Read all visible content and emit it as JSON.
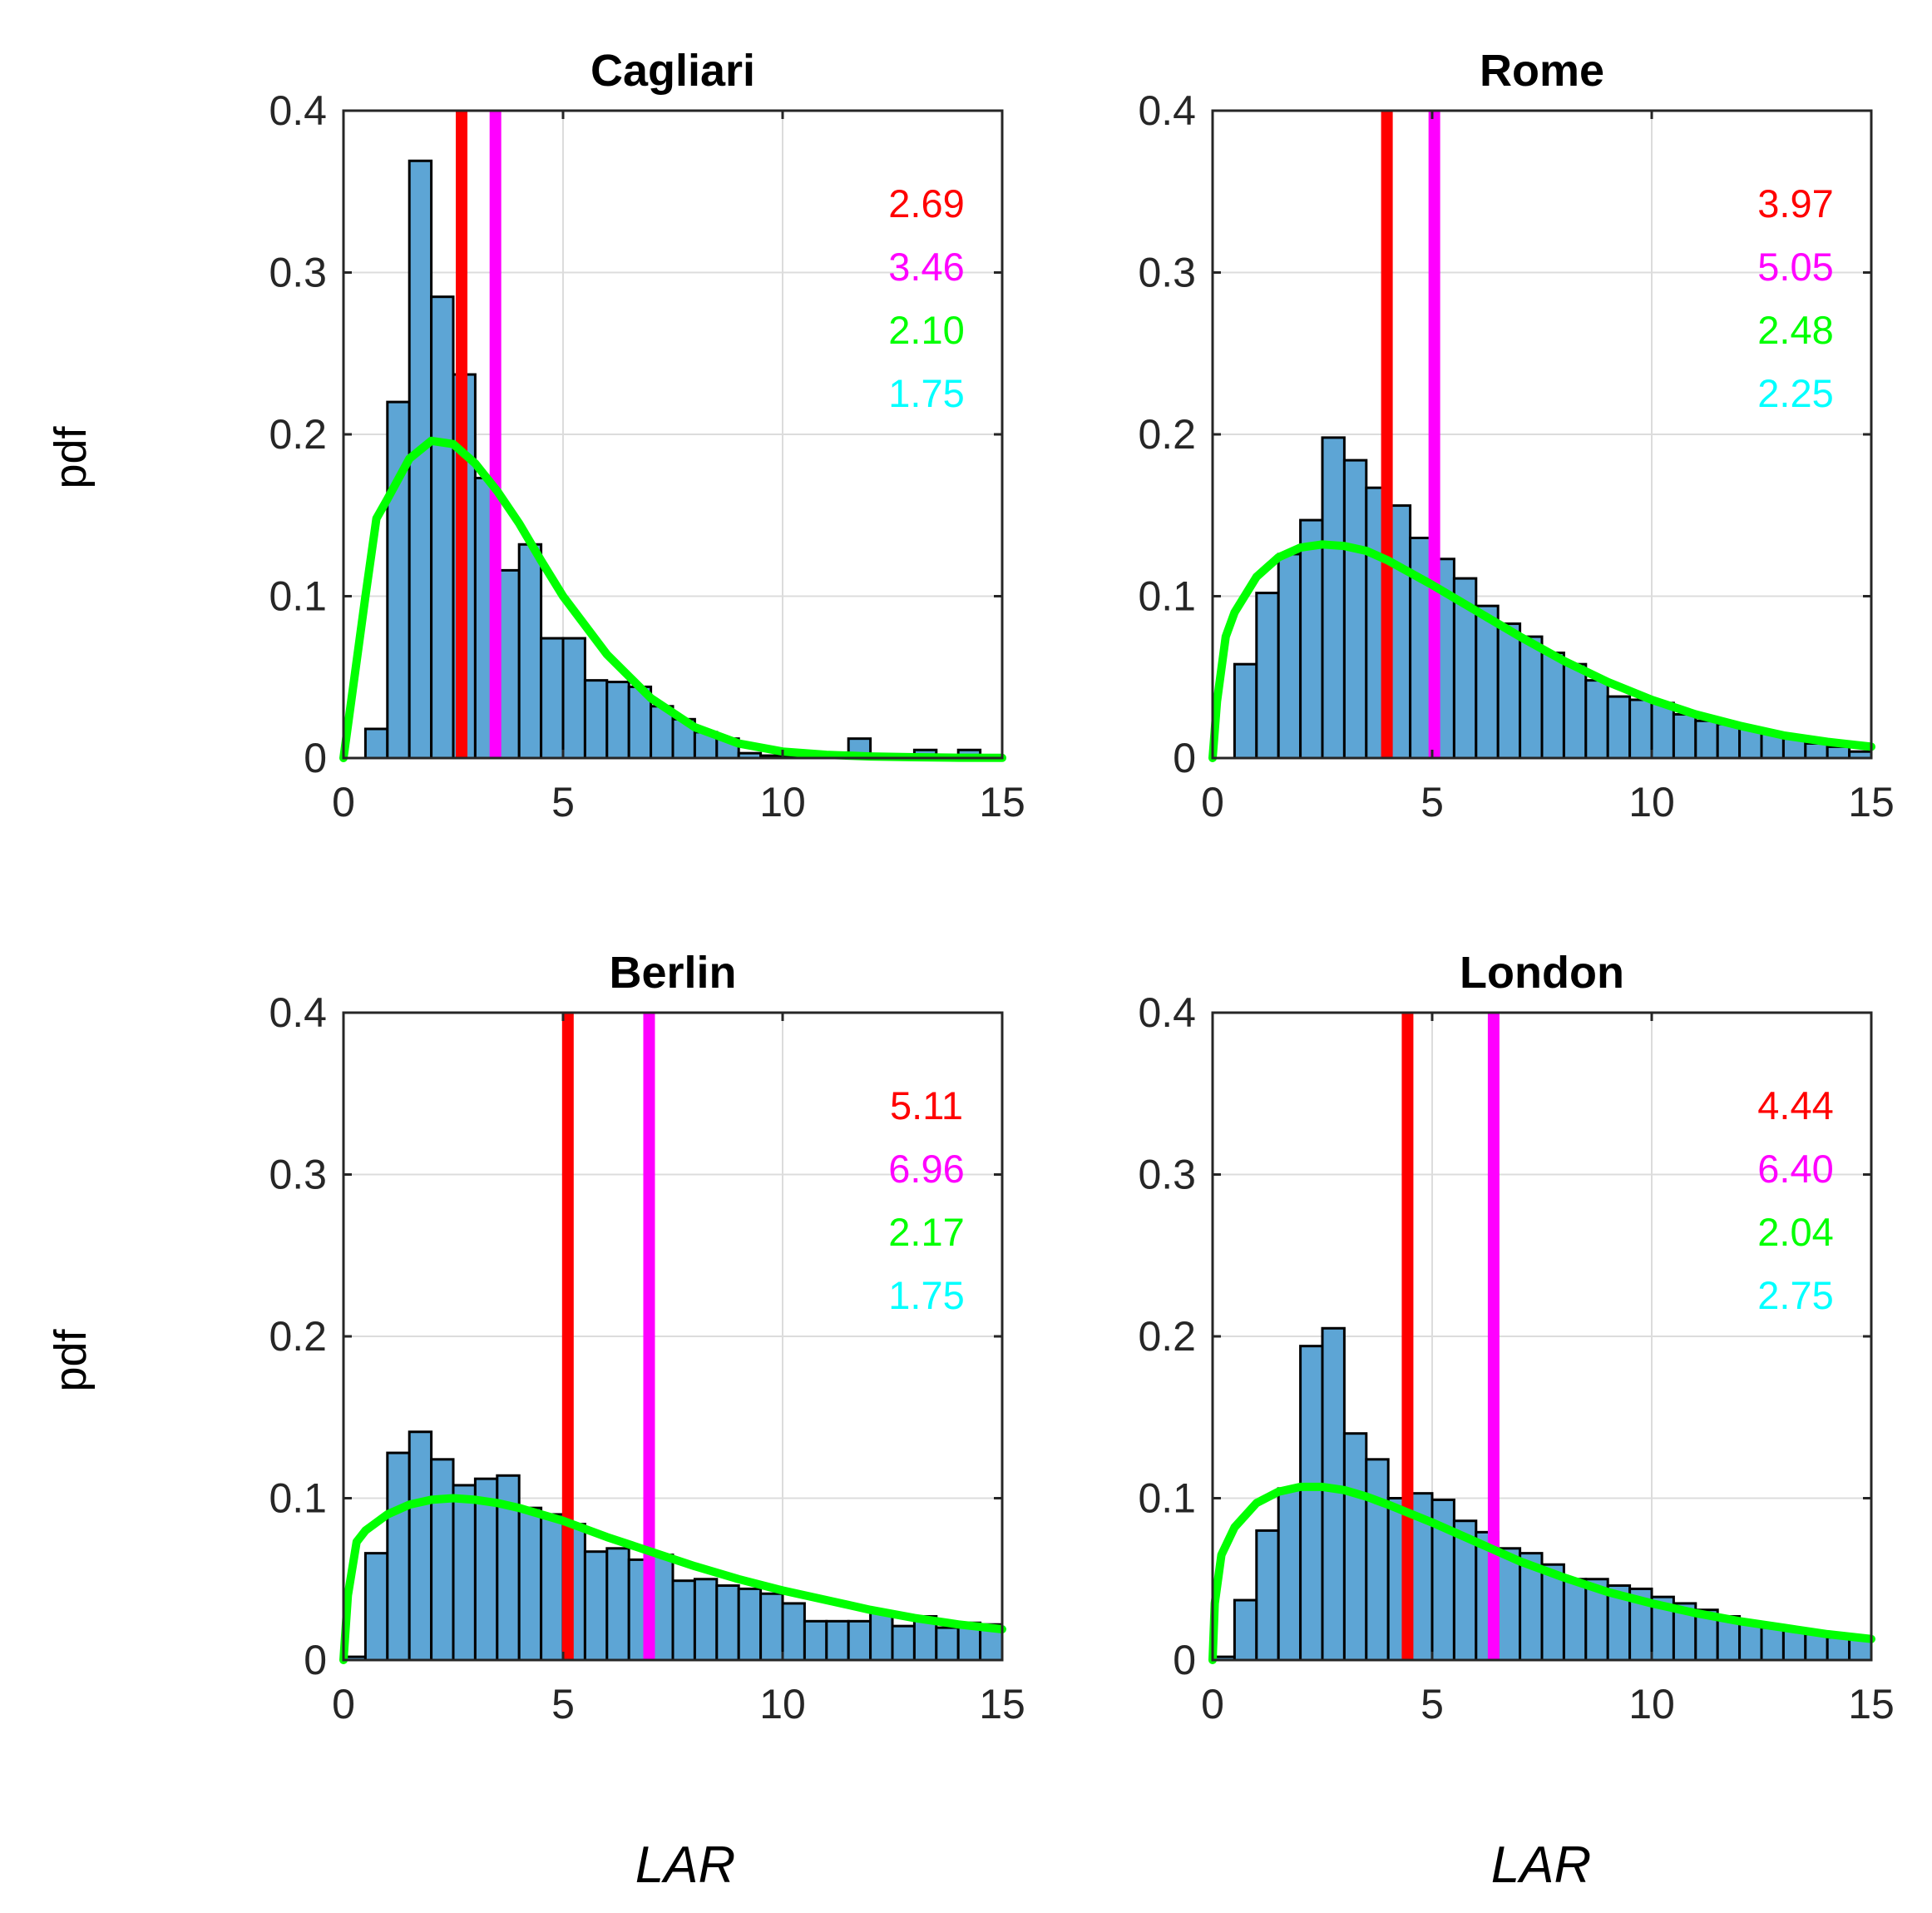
{
  "chart_data": [
    {
      "type": "bar",
      "title": "Cagliari",
      "xlabel": "LAR",
      "ylabel": "pdf",
      "xlim": [
        0,
        15
      ],
      "ylim": [
        0,
        0.4
      ],
      "xticks": [
        "0",
        "5",
        "10",
        "15"
      ],
      "yticks": [
        "0",
        "0.1",
        "0.2",
        "0.3",
        "0.4"
      ],
      "grid": true,
      "bin_width": 0.5,
      "bin_start": 0,
      "values": [
        0,
        0.018,
        0.22,
        0.369,
        0.285,
        0.237,
        0.173,
        0.116,
        0.132,
        0.074,
        0.074,
        0.048,
        0.047,
        0.044,
        0.032,
        0.024,
        0.016,
        0.012,
        0.003,
        0.0015,
        0.0015,
        0.0015,
        0.0015,
        0.012,
        0.001,
        0.0015,
        0.005,
        0.0015,
        0.005,
        0.0015
      ],
      "fit_curve": {
        "name": "fitted pdf",
        "color": "#00ff00",
        "x": [
          0,
          0.25,
          0.5,
          0.75,
          1,
          1.5,
          2,
          2.5,
          3,
          3.5,
          4,
          4.5,
          5,
          6,
          7,
          8,
          9,
          10,
          11,
          12,
          13,
          14,
          15
        ],
        "y": [
          0,
          0.05,
          0.1,
          0.148,
          0.16,
          0.185,
          0.196,
          0.194,
          0.182,
          0.165,
          0.145,
          0.122,
          0.1,
          0.064,
          0.037,
          0.019,
          0.009,
          0.004,
          0.002,
          0.001,
          0.0005,
          0.0002,
          0.0001
        ]
      },
      "vlines": [
        {
          "name": "red",
          "x": 2.69,
          "color": "#ff0000"
        },
        {
          "name": "magenta",
          "x": 3.46,
          "color": "#ff00ff"
        }
      ],
      "annotations": [
        {
          "text": "2.69",
          "color": "#ff0000"
        },
        {
          "text": "3.46",
          "color": "#ff00ff"
        },
        {
          "text": "2.10",
          "color": "#00ff00"
        },
        {
          "text": "1.75",
          "color": "#00ffff"
        }
      ]
    },
    {
      "type": "bar",
      "title": "Rome",
      "xlabel": "LAR",
      "ylabel": "pdf",
      "xlim": [
        0,
        15
      ],
      "ylim": [
        0,
        0.4
      ],
      "xticks": [
        "0",
        "5",
        "10",
        "15"
      ],
      "yticks": [
        "0",
        "0.1",
        "0.2",
        "0.3",
        "0.4"
      ],
      "grid": true,
      "bin_width": 0.5,
      "bin_start": 0,
      "values": [
        0,
        0.058,
        0.102,
        0.126,
        0.147,
        0.198,
        0.184,
        0.167,
        0.156,
        0.136,
        0.123,
        0.111,
        0.094,
        0.083,
        0.075,
        0.065,
        0.058,
        0.048,
        0.038,
        0.036,
        0.034,
        0.027,
        0.023,
        0.021,
        0.018,
        0.015,
        0.012,
        0.009,
        0.007,
        0.004
      ],
      "fit_curve": {
        "name": "fitted pdf",
        "color": "#00ff00",
        "x": [
          0,
          0.1,
          0.3,
          0.5,
          1,
          1.5,
          2,
          2.5,
          3,
          3.5,
          4,
          5,
          6,
          7,
          8,
          9,
          10,
          11,
          12,
          13,
          14,
          15
        ],
        "y": [
          0,
          0.035,
          0.075,
          0.09,
          0.112,
          0.124,
          0.13,
          0.132,
          0.131,
          0.128,
          0.122,
          0.107,
          0.091,
          0.075,
          0.06,
          0.047,
          0.036,
          0.027,
          0.02,
          0.014,
          0.01,
          0.007
        ]
      },
      "vlines": [
        {
          "name": "red",
          "x": 3.97,
          "color": "#ff0000"
        },
        {
          "name": "magenta",
          "x": 5.05,
          "color": "#ff00ff"
        }
      ],
      "annotations": [
        {
          "text": "3.97",
          "color": "#ff0000"
        },
        {
          "text": "5.05",
          "color": "#ff00ff"
        },
        {
          "text": "2.48",
          "color": "#00ff00"
        },
        {
          "text": "2.25",
          "color": "#00ffff"
        }
      ]
    },
    {
      "type": "bar",
      "title": "Berlin",
      "xlabel": "LAR",
      "ylabel": "pdf",
      "xlim": [
        0,
        15
      ],
      "ylim": [
        0,
        0.4
      ],
      "xticks": [
        "0",
        "5",
        "10",
        "15"
      ],
      "yticks": [
        "0",
        "0.1",
        "0.2",
        "0.3",
        "0.4"
      ],
      "grid": true,
      "bin_width": 0.5,
      "bin_start": 0,
      "values": [
        0.002,
        0.066,
        0.128,
        0.141,
        0.124,
        0.108,
        0.112,
        0.114,
        0.094,
        0.09,
        0.084,
        0.067,
        0.069,
        0.062,
        0.065,
        0.049,
        0.05,
        0.046,
        0.044,
        0.041,
        0.035,
        0.024,
        0.024,
        0.024,
        0.03,
        0.021,
        0.027,
        0.02,
        0.023,
        0.022
      ],
      "fit_curve": {
        "name": "fitted pdf",
        "color": "#00ff00",
        "x": [
          0,
          0.1,
          0.3,
          0.5,
          1,
          1.5,
          2,
          2.5,
          3,
          3.5,
          4,
          5,
          6,
          7,
          8,
          9,
          10,
          11,
          12,
          13,
          14,
          15
        ],
        "y": [
          0,
          0.04,
          0.073,
          0.08,
          0.09,
          0.096,
          0.099,
          0.1,
          0.099,
          0.097,
          0.094,
          0.086,
          0.076,
          0.067,
          0.058,
          0.05,
          0.043,
          0.037,
          0.031,
          0.026,
          0.022,
          0.019
        ]
      },
      "vlines": [
        {
          "name": "red",
          "x": 5.11,
          "color": "#ff0000"
        },
        {
          "name": "magenta",
          "x": 6.96,
          "color": "#ff00ff"
        }
      ],
      "annotations": [
        {
          "text": "5.11",
          "color": "#ff0000"
        },
        {
          "text": "6.96",
          "color": "#ff00ff"
        },
        {
          "text": "2.17",
          "color": "#00ff00"
        },
        {
          "text": "1.75",
          "color": "#00ffff"
        }
      ]
    },
    {
      "type": "bar",
      "title": "London",
      "xlabel": "LAR",
      "ylabel": "pdf",
      "xlim": [
        0,
        15
      ],
      "ylim": [
        0,
        0.4
      ],
      "xticks": [
        "0",
        "5",
        "10",
        "15"
      ],
      "yticks": [
        "0",
        "0.1",
        "0.2",
        "0.3",
        "0.4"
      ],
      "grid": true,
      "bin_width": 0.5,
      "bin_start": 0,
      "values": [
        0.002,
        0.037,
        0.08,
        0.106,
        0.194,
        0.205,
        0.14,
        0.124,
        0.1,
        0.103,
        0.099,
        0.086,
        0.079,
        0.069,
        0.066,
        0.059,
        0.05,
        0.05,
        0.046,
        0.044,
        0.039,
        0.035,
        0.031,
        0.027,
        0.023,
        0.02,
        0.018,
        0.016,
        0.014,
        0.013
      ],
      "fit_curve": {
        "name": "fitted pdf",
        "color": "#00ff00",
        "x": [
          0,
          0.05,
          0.2,
          0.5,
          1,
          1.5,
          2,
          2.5,
          3,
          3.5,
          4,
          5,
          6,
          7,
          8,
          9,
          10,
          11,
          12,
          13,
          14,
          15
        ],
        "y": [
          0,
          0.035,
          0.065,
          0.082,
          0.097,
          0.104,
          0.107,
          0.107,
          0.105,
          0.101,
          0.096,
          0.085,
          0.073,
          0.061,
          0.051,
          0.042,
          0.035,
          0.029,
          0.024,
          0.02,
          0.016,
          0.013
        ]
      },
      "vlines": [
        {
          "name": "red",
          "x": 4.44,
          "color": "#ff0000"
        },
        {
          "name": "magenta",
          "x": 6.4,
          "color": "#ff00ff"
        }
      ],
      "annotations": [
        {
          "text": "4.44",
          "color": "#ff0000"
        },
        {
          "text": "6.40",
          "color": "#ff00ff"
        },
        {
          "text": "2.04",
          "color": "#00ff00"
        },
        {
          "text": "2.75",
          "color": "#00ffff"
        }
      ]
    }
  ],
  "figure": {
    "row_ylabels": [
      "pdf",
      "pdf"
    ],
    "col_xlabels": [
      "LAR",
      "LAR"
    ]
  }
}
